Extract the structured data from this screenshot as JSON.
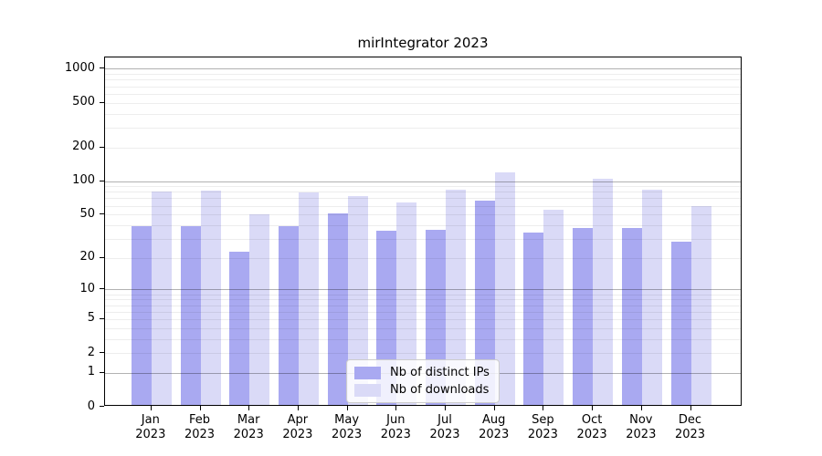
{
  "chart_data": {
    "type": "bar",
    "title": "mirIntegrator 2023",
    "categories": [
      "Jan",
      "Feb",
      "Mar",
      "Apr",
      "May",
      "Jun",
      "Jul",
      "Aug",
      "Sep",
      "Oct",
      "Nov",
      "Dec"
    ],
    "category_year": "2023",
    "series": [
      {
        "name": "Nb of distinct IPs",
        "color": "#a9a9f1",
        "values": [
          38,
          38,
          22,
          38,
          49,
          34,
          35,
          64,
          33,
          36,
          36,
          27
        ]
      },
      {
        "name": "Nb of downloads",
        "color": "#dadaf7",
        "values": [
          77,
          79,
          48,
          76,
          70,
          62,
          80,
          115,
          53,
          101,
          81,
          57
        ]
      }
    ],
    "y_axis": {
      "scale": "logarithmic (log10 of value+1), 0 at baseline",
      "tick_labels": [
        "1000",
        "500",
        "200",
        "100",
        "50",
        "20",
        "10",
        "5",
        "2",
        "1",
        "0"
      ],
      "tick_values": [
        1000,
        500,
        200,
        100,
        50,
        20,
        10,
        5,
        2,
        1,
        0
      ]
    },
    "legend": {
      "position": "bottom-center",
      "entries": [
        "Nb of distinct IPs",
        "Nb of downloads"
      ]
    },
    "grid": "horizontal major (1,10,100,1000) and minor (2-9 per decade), drawn over bars"
  },
  "colors": {
    "bar_dark": "#a9a9f1",
    "bar_light": "#dadaf7",
    "grid_major": "#b3b3b3",
    "grid_minor": "#e8e8e8",
    "axis": "#000000",
    "legend_border": "#cccccc",
    "background": "#ffffff"
  }
}
